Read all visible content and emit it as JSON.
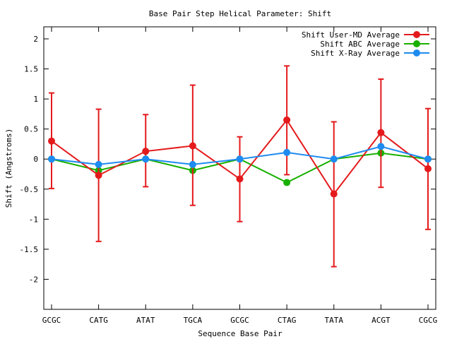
{
  "chart_data": {
    "type": "line",
    "title": "Base Pair Step Helical Parameter: Shift",
    "xlabel": "Sequence Base Pair",
    "ylabel": "Shift (Angstroms)",
    "categories": [
      "GCGC",
      "CATG",
      "ATAT",
      "TGCA",
      "GCGC",
      "CTAG",
      "TATA",
      "ACGT",
      "CGCG"
    ],
    "ylim": [
      -2.5,
      2.2
    ],
    "yticks": [
      -2,
      -1.5,
      -1,
      -0.5,
      0,
      0.5,
      1,
      1.5,
      2
    ],
    "ytick_labels": [
      "-2",
      "-1.5",
      "-1",
      "-0.5",
      "0",
      "0.5",
      "1",
      "1.5",
      "2"
    ],
    "grid": false,
    "legend_position": "top-right",
    "series": [
      {
        "name": "Shift User-MD Average",
        "color": "#e41a1c",
        "values": [
          0.3,
          -0.27,
          0.13,
          0.22,
          -0.33,
          0.65,
          -0.58,
          0.44,
          -0.16
        ],
        "error_low": [
          -0.49,
          -1.37,
          -0.46,
          -0.77,
          -1.04,
          -0.26,
          -1.79,
          -0.47,
          -1.17
        ],
        "error_high": [
          1.1,
          0.83,
          0.74,
          1.23,
          0.37,
          1.55,
          0.62,
          1.33,
          0.84
        ]
      },
      {
        "name": "Shift ABC Average",
        "color": "#18b000",
        "values": [
          0.0,
          -0.19,
          0.0,
          -0.19,
          0.0,
          -0.39,
          0.0,
          0.1,
          0.0
        ]
      },
      {
        "name": "Shift X-Ray Average",
        "color": "#1e8bf0",
        "values": [
          0.0,
          -0.09,
          0.0,
          -0.09,
          0.0,
          0.11,
          0.0,
          0.21,
          0.0
        ]
      }
    ]
  }
}
